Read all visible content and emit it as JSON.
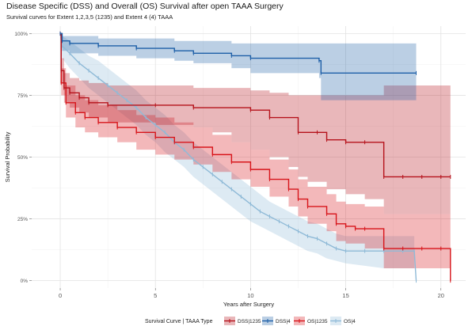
{
  "chart_data": {
    "type": "line",
    "title": "Disease Specific (DSS) and Overall (OS) Survival after open TAAA Surgery",
    "subtitle": "Survival curves for Extent 1,2,3,5 (1235) and Extent 4 (4) TAAA",
    "xlabel": "Years after Surgery",
    "ylabel": "Survival Probability",
    "xlim": [
      -1.5,
      21.3
    ],
    "ylim": [
      -0.03,
      1.03
    ],
    "x_ticks": [
      0,
      5,
      10,
      15,
      20
    ],
    "x_tick_labels": [
      "0",
      "5",
      "10",
      "15",
      "20"
    ],
    "y_ticks": [
      0,
      0.25,
      0.5,
      0.75,
      1
    ],
    "y_tick_labels": [
      "0%",
      "25%",
      "50%",
      "75%",
      "100%"
    ],
    "grid": true,
    "legend_title": "Survival Curve | TAAA Type",
    "legend_position": "bottom",
    "series": [
      {
        "name": "OS|4",
        "color": "#8fbad7",
        "step": false,
        "points": [
          [
            0,
            1.0
          ],
          [
            0.1,
            0.95
          ],
          [
            0.5,
            0.92
          ],
          [
            1,
            0.88
          ],
          [
            1.5,
            0.85
          ],
          [
            2,
            0.82
          ],
          [
            2.5,
            0.79
          ],
          [
            3,
            0.76
          ],
          [
            3.5,
            0.73
          ],
          [
            4,
            0.7
          ],
          [
            4.5,
            0.66
          ],
          [
            5,
            0.63
          ],
          [
            5.5,
            0.6
          ],
          [
            6,
            0.56
          ],
          [
            6.5,
            0.53
          ],
          [
            7,
            0.49
          ],
          [
            7.5,
            0.46
          ],
          [
            8,
            0.43
          ],
          [
            8.5,
            0.4
          ],
          [
            9,
            0.37
          ],
          [
            9.5,
            0.34
          ],
          [
            10,
            0.31
          ],
          [
            10.5,
            0.28
          ],
          [
            11,
            0.26
          ],
          [
            11.5,
            0.24
          ],
          [
            12,
            0.22
          ],
          [
            12.5,
            0.2
          ],
          [
            13,
            0.18
          ],
          [
            13.5,
            0.17
          ],
          [
            14,
            0.15
          ],
          [
            14.5,
            0.13
          ],
          [
            15,
            0.12
          ],
          [
            16,
            0.12
          ],
          [
            17,
            0.12
          ],
          [
            18,
            0.12
          ],
          [
            18.6,
            0.12
          ],
          [
            18.7,
            0.0
          ]
        ],
        "lower": [
          [
            0,
            0.98
          ],
          [
            0.1,
            0.9
          ],
          [
            0.5,
            0.86
          ],
          [
            1,
            0.82
          ],
          [
            1.5,
            0.78
          ],
          [
            2,
            0.75
          ],
          [
            2.5,
            0.72
          ],
          [
            3,
            0.69
          ],
          [
            3.5,
            0.66
          ],
          [
            4,
            0.63
          ],
          [
            4.5,
            0.59
          ],
          [
            5,
            0.56
          ],
          [
            5.5,
            0.52
          ],
          [
            6,
            0.49
          ],
          [
            6.5,
            0.46
          ],
          [
            7,
            0.42
          ],
          [
            7.5,
            0.39
          ],
          [
            8,
            0.36
          ],
          [
            8.5,
            0.33
          ],
          [
            9,
            0.3
          ],
          [
            9.5,
            0.27
          ],
          [
            10,
            0.24
          ],
          [
            10.5,
            0.22
          ],
          [
            11,
            0.2
          ],
          [
            11.5,
            0.18
          ],
          [
            12,
            0.16
          ],
          [
            12.5,
            0.14
          ],
          [
            13,
            0.12
          ],
          [
            13.5,
            0.11
          ],
          [
            14,
            0.09
          ],
          [
            14.5,
            0.08
          ],
          [
            15,
            0.07
          ],
          [
            16,
            0.06
          ],
          [
            17,
            0.05
          ],
          [
            18,
            0.05
          ],
          [
            18.6,
            0.05
          ]
        ],
        "upper": [
          [
            0,
            1.0
          ],
          [
            0.1,
            0.99
          ],
          [
            0.5,
            0.97
          ],
          [
            1,
            0.94
          ],
          [
            1.5,
            0.91
          ],
          [
            2,
            0.89
          ],
          [
            2.5,
            0.86
          ],
          [
            3,
            0.83
          ],
          [
            3.5,
            0.8
          ],
          [
            4,
            0.77
          ],
          [
            4.5,
            0.73
          ],
          [
            5,
            0.7
          ],
          [
            5.5,
            0.67
          ],
          [
            6,
            0.63
          ],
          [
            6.5,
            0.6
          ],
          [
            7,
            0.56
          ],
          [
            7.5,
            0.53
          ],
          [
            8,
            0.5
          ],
          [
            8.5,
            0.47
          ],
          [
            9,
            0.44
          ],
          [
            9.5,
            0.41
          ],
          [
            10,
            0.38
          ],
          [
            10.5,
            0.35
          ],
          [
            11,
            0.32
          ],
          [
            11.5,
            0.3
          ],
          [
            12,
            0.28
          ],
          [
            12.5,
            0.26
          ],
          [
            13,
            0.24
          ],
          [
            13.5,
            0.23
          ],
          [
            14,
            0.21
          ],
          [
            14.5,
            0.19
          ],
          [
            15,
            0.18
          ],
          [
            16,
            0.18
          ],
          [
            17,
            0.18
          ],
          [
            18,
            0.18
          ],
          [
            18.6,
            0.18
          ]
        ]
      },
      {
        "name": "OS|1235",
        "color": "#d7141a",
        "step": true,
        "points": [
          [
            0,
            1.0
          ],
          [
            0.05,
            0.8
          ],
          [
            0.3,
            0.72
          ],
          [
            0.8,
            0.68
          ],
          [
            1.3,
            0.66
          ],
          [
            2,
            0.64
          ],
          [
            3,
            0.62
          ],
          [
            4,
            0.6
          ],
          [
            5,
            0.58
          ],
          [
            6,
            0.56
          ],
          [
            7,
            0.54
          ],
          [
            8,
            0.51
          ],
          [
            9,
            0.48
          ],
          [
            10,
            0.45
          ],
          [
            11,
            0.41
          ],
          [
            12,
            0.37
          ],
          [
            12.5,
            0.33
          ],
          [
            13,
            0.3
          ],
          [
            14,
            0.27
          ],
          [
            14.5,
            0.23
          ],
          [
            15,
            0.22
          ],
          [
            15.5,
            0.21
          ],
          [
            16,
            0.21
          ],
          [
            17,
            0.13
          ],
          [
            18,
            0.13
          ],
          [
            19,
            0.13
          ],
          [
            20,
            0.13
          ],
          [
            20.5,
            0.0
          ]
        ],
        "lower": [
          [
            0,
            0.99
          ],
          [
            0.05,
            0.75
          ],
          [
            0.3,
            0.66
          ],
          [
            0.8,
            0.62
          ],
          [
            1.3,
            0.6
          ],
          [
            2,
            0.58
          ],
          [
            3,
            0.56
          ],
          [
            4,
            0.53
          ],
          [
            5,
            0.51
          ],
          [
            6,
            0.49
          ],
          [
            7,
            0.47
          ],
          [
            8,
            0.44
          ],
          [
            9,
            0.41
          ],
          [
            10,
            0.38
          ],
          [
            11,
            0.34
          ],
          [
            12,
            0.3
          ],
          [
            12.5,
            0.26
          ],
          [
            13,
            0.23
          ],
          [
            14,
            0.2
          ],
          [
            14.5,
            0.16
          ],
          [
            15,
            0.15
          ],
          [
            16,
            0.13
          ],
          [
            17,
            0.05
          ],
          [
            18,
            0.05
          ],
          [
            19,
            0.05
          ],
          [
            20,
            0.05
          ],
          [
            20.5,
            0.05
          ]
        ],
        "upper": [
          [
            0,
            1.0
          ],
          [
            0.05,
            0.86
          ],
          [
            0.3,
            0.79
          ],
          [
            0.8,
            0.75
          ],
          [
            1.3,
            0.73
          ],
          [
            2,
            0.71
          ],
          [
            3,
            0.69
          ],
          [
            4,
            0.67
          ],
          [
            5,
            0.66
          ],
          [
            6,
            0.64
          ],
          [
            7,
            0.62
          ],
          [
            8,
            0.59
          ],
          [
            9,
            0.56
          ],
          [
            10,
            0.53
          ],
          [
            11,
            0.49
          ],
          [
            12,
            0.45
          ],
          [
            12.5,
            0.41
          ],
          [
            13,
            0.38
          ],
          [
            14,
            0.35
          ],
          [
            14.5,
            0.32
          ],
          [
            15,
            0.31
          ],
          [
            16,
            0.3
          ],
          [
            17,
            0.27
          ],
          [
            18,
            0.27
          ],
          [
            19,
            0.27
          ],
          [
            20,
            0.27
          ],
          [
            20.5,
            0.27
          ]
        ]
      },
      {
        "name": "DSS|1235",
        "color": "#b5121b",
        "step": true,
        "points": [
          [
            0,
            1.0
          ],
          [
            0.05,
            0.85
          ],
          [
            0.2,
            0.78
          ],
          [
            0.5,
            0.76
          ],
          [
            1,
            0.74
          ],
          [
            1.5,
            0.72
          ],
          [
            2.5,
            0.71
          ],
          [
            5,
            0.71
          ],
          [
            7,
            0.7
          ],
          [
            10,
            0.69
          ],
          [
            11,
            0.66
          ],
          [
            12.5,
            0.6
          ],
          [
            13.5,
            0.6
          ],
          [
            14,
            0.57
          ],
          [
            15,
            0.56
          ],
          [
            16,
            0.56
          ],
          [
            17,
            0.42
          ],
          [
            18,
            0.42
          ],
          [
            19,
            0.42
          ],
          [
            20,
            0.42
          ],
          [
            20.5,
            0.42
          ]
        ],
        "lower": [
          [
            0,
            0.99
          ],
          [
            0.05,
            0.8
          ],
          [
            0.2,
            0.72
          ],
          [
            0.5,
            0.7
          ],
          [
            1,
            0.68
          ],
          [
            1.5,
            0.66
          ],
          [
            2.5,
            0.64
          ],
          [
            5,
            0.63
          ],
          [
            7,
            0.62
          ],
          [
            8,
            0.6
          ],
          [
            9,
            0.56
          ],
          [
            10,
            0.53
          ],
          [
            11,
            0.5
          ],
          [
            12,
            0.46
          ],
          [
            12.5,
            0.42
          ],
          [
            13,
            0.4
          ],
          [
            14,
            0.37
          ],
          [
            15,
            0.35
          ],
          [
            16,
            0.33
          ],
          [
            17,
            0.27
          ],
          [
            18,
            0.27
          ],
          [
            19,
            0.27
          ],
          [
            20,
            0.27
          ],
          [
            20.5,
            0.27
          ]
        ],
        "upper": [
          [
            0,
            1.0
          ],
          [
            0.05,
            0.9
          ],
          [
            0.2,
            0.84
          ],
          [
            0.5,
            0.82
          ],
          [
            1,
            0.81
          ],
          [
            1.5,
            0.8
          ],
          [
            2.5,
            0.79
          ],
          [
            5,
            0.79
          ],
          [
            7,
            0.78
          ],
          [
            8,
            0.78
          ],
          [
            10,
            0.77
          ],
          [
            11,
            0.76
          ],
          [
            12,
            0.75
          ],
          [
            12.5,
            0.75
          ],
          [
            13,
            0.75
          ],
          [
            14,
            0.75
          ],
          [
            15,
            0.75
          ],
          [
            16,
            0.75
          ],
          [
            17,
            0.79
          ],
          [
            18,
            0.79
          ],
          [
            19,
            0.79
          ],
          [
            20,
            0.79
          ],
          [
            20.5,
            0.79
          ]
        ]
      },
      {
        "name": "DSS|4",
        "color": "#1d5fa7",
        "step": true,
        "points": [
          [
            0,
            1.0
          ],
          [
            0.1,
            0.97
          ],
          [
            0.5,
            0.96
          ],
          [
            2,
            0.95
          ],
          [
            4,
            0.94
          ],
          [
            6,
            0.93
          ],
          [
            7,
            0.92
          ],
          [
            9,
            0.91
          ],
          [
            10,
            0.9
          ],
          [
            13.6,
            0.89
          ],
          [
            13.7,
            0.84
          ],
          [
            18.7,
            0.84
          ]
        ],
        "lower": [
          [
            0,
            0.99
          ],
          [
            0.1,
            0.93
          ],
          [
            0.5,
            0.92
          ],
          [
            2,
            0.91
          ],
          [
            4,
            0.9
          ],
          [
            6,
            0.89
          ],
          [
            7,
            0.88
          ],
          [
            9,
            0.86
          ],
          [
            10,
            0.84
          ],
          [
            13.6,
            0.82
          ],
          [
            13.7,
            0.73
          ],
          [
            18.7,
            0.73
          ]
        ],
        "upper": [
          [
            0,
            1.0
          ],
          [
            0.1,
            0.99
          ],
          [
            0.5,
            0.99
          ],
          [
            2,
            0.98
          ],
          [
            4,
            0.98
          ],
          [
            6,
            0.97
          ],
          [
            7,
            0.97
          ],
          [
            9,
            0.96
          ],
          [
            10,
            0.96
          ],
          [
            13.6,
            0.96
          ],
          [
            13.7,
            0.96
          ],
          [
            18.7,
            0.96
          ]
        ]
      }
    ],
    "legend": [
      {
        "name": "DSS|1235",
        "color": "#b5121b"
      },
      {
        "name": "DSS|4",
        "color": "#1d5fa7"
      },
      {
        "name": "OS|1235",
        "color": "#d7141a"
      },
      {
        "name": "OS|4",
        "color": "#8fbad7"
      }
    ]
  }
}
